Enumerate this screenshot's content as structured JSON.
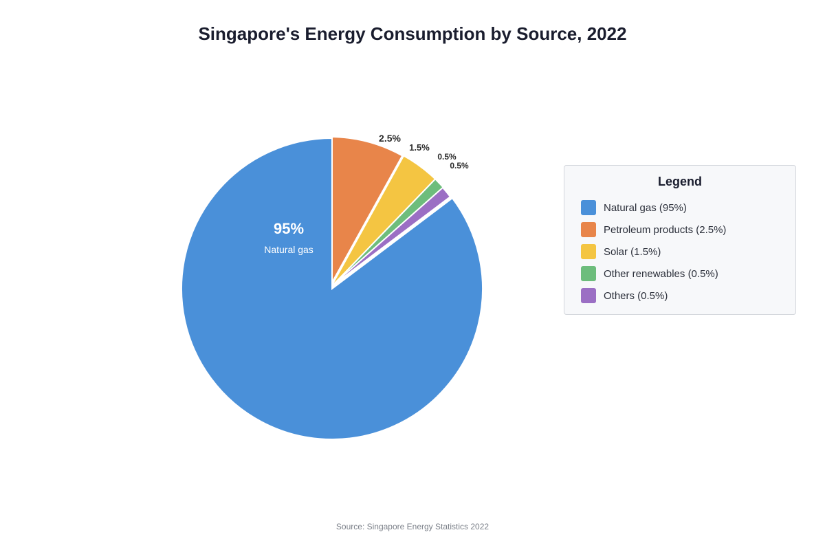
{
  "chart_data": {
    "type": "pie",
    "title": "Singapore's Energy Consumption by Source, 2022",
    "slices": [
      {
        "label": "Natural gas",
        "value": 95,
        "value_label": "95%",
        "color": "#4a90d9",
        "legend": "Natural gas (95%)"
      },
      {
        "label": "Petroleum products",
        "value": 2.5,
        "value_label": "2.5%",
        "color": "#e8854a",
        "legend": "Petroleum products (2.5%)"
      },
      {
        "label": "Solar",
        "value": 1.5,
        "value_label": "1.5%",
        "color": "#f4c542",
        "legend": "Solar (1.5%)"
      },
      {
        "label": "Other renewables",
        "value": 0.5,
        "value_label": "0.5%",
        "color": "#6dbd7c",
        "legend": "Other renewables (0.5%)"
      },
      {
        "label": "Others",
        "value": 0.5,
        "value_label": "0.5%",
        "color": "#9b6fc4",
        "legend": "Others (0.5%)"
      }
    ],
    "inner_label": {
      "value": "95%",
      "name": "Natural gas"
    },
    "legend_title": "Legend",
    "legend_placement": "right",
    "exploded_slices": [
      "Petroleum products",
      "Solar",
      "Other renewables",
      "Others"
    ],
    "source": "Source: Singapore Energy Statistics 2022"
  }
}
